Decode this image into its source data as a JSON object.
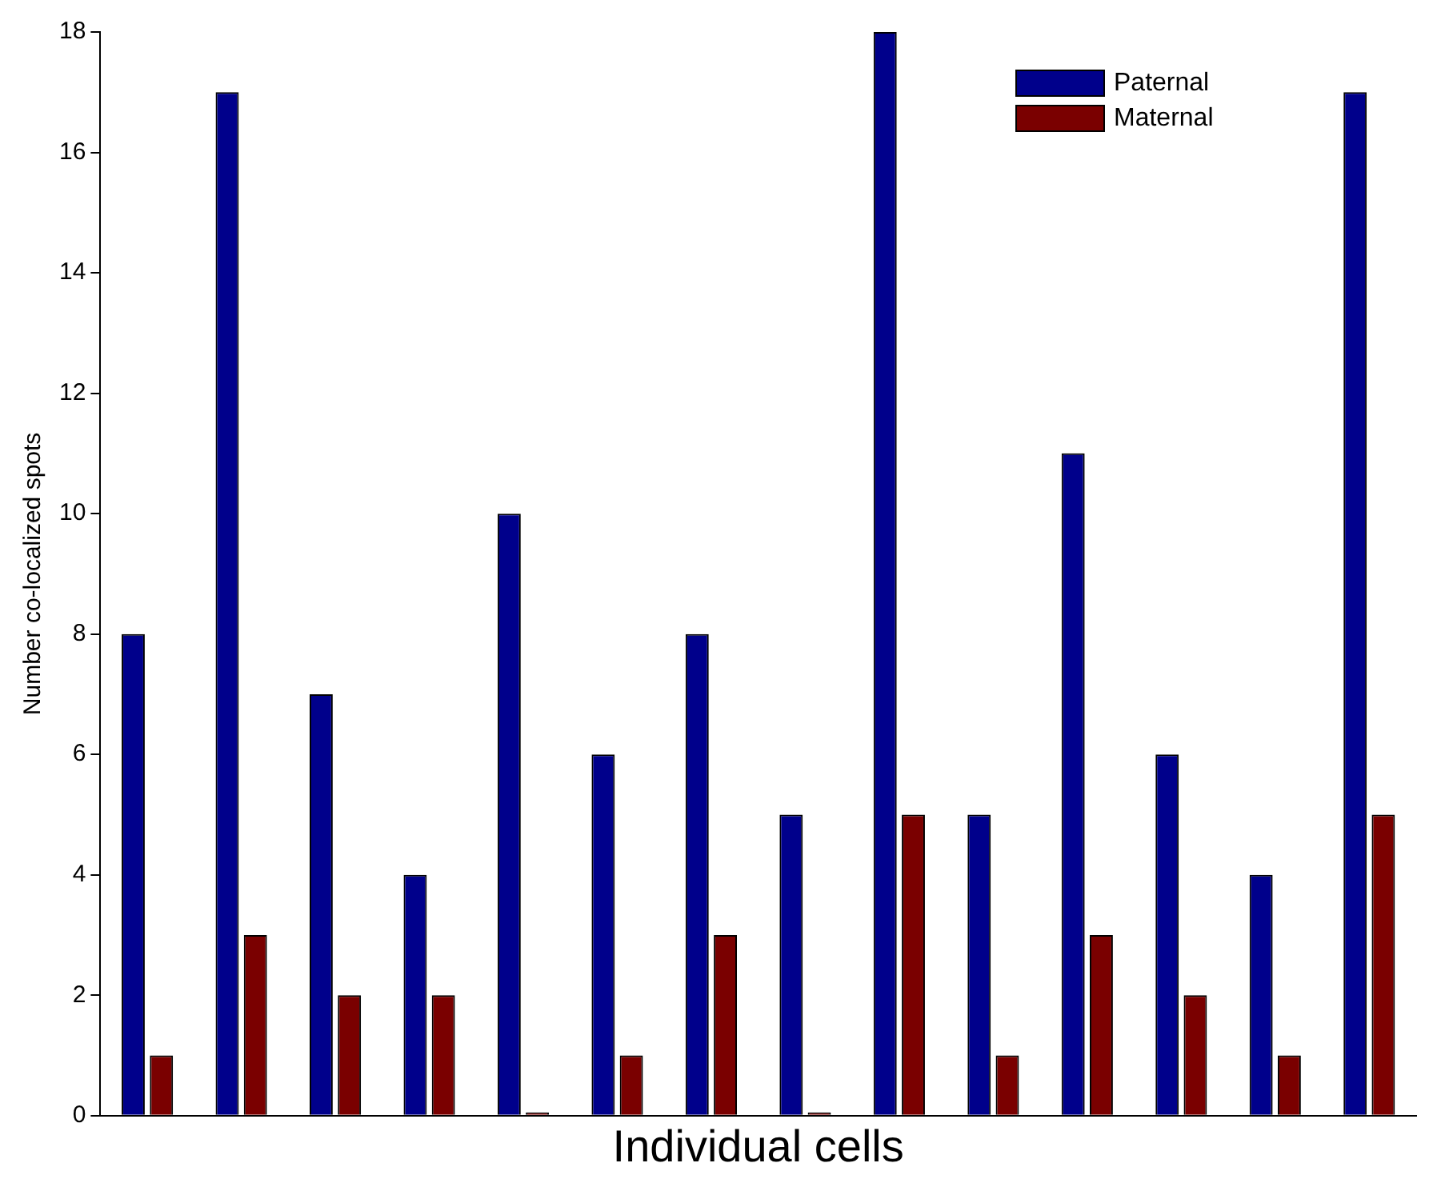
{
  "chart_data": {
    "type": "bar",
    "xlabel": "Individual cells",
    "ylabel": "Number co-localized spots",
    "categories": [
      null,
      null,
      null,
      null,
      null,
      null,
      null,
      null,
      null,
      null,
      null,
      null,
      null,
      null
    ],
    "series": [
      {
        "name": "Paternal",
        "color": "#00008b",
        "values": [
          8,
          17,
          7,
          4,
          10,
          6,
          8,
          5,
          18,
          5,
          11,
          6,
          4,
          17
        ]
      },
      {
        "name": "Maternal",
        "color": "#7a0000",
        "values": [
          1,
          3,
          2,
          2,
          0,
          1,
          3,
          0,
          5,
          1,
          3,
          2,
          1,
          5
        ]
      }
    ],
    "ylim": [
      0,
      18
    ],
    "yticks": [
      0,
      2,
      4,
      6,
      8,
      10,
      12,
      14,
      16,
      18
    ],
    "grid": false,
    "legend": "top right",
    "tick_labels": "y"
  }
}
